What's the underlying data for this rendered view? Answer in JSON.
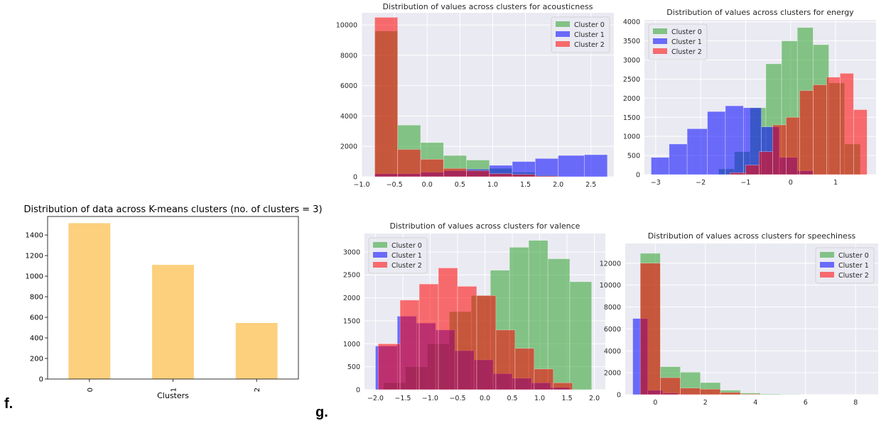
{
  "panel_labels": {
    "f": "f.",
    "g": "g."
  },
  "chart_data": [
    {
      "id": "kmeans",
      "type": "bar",
      "title": "Distribution of data across K-means clusters (no. of clusters = 3)",
      "xlabel": "Clusters",
      "ylabel": "",
      "categories": [
        "0",
        "1",
        "2"
      ],
      "values": [
        1515,
        1110,
        545
      ],
      "color": "#fdd07e",
      "ylim": [
        0,
        1580
      ],
      "yticks": [
        0,
        200,
        400,
        600,
        800,
        1000,
        1200,
        1400
      ],
      "ytick_labels": [
        "0",
        "200",
        "400",
        "600",
        "800",
        "1000",
        "1200",
        "1400"
      ],
      "grid": false
    },
    {
      "id": "acousticness",
      "type": "bar",
      "title": "Distribution of values across clusters for acousticness",
      "xlabel": "",
      "ylabel": "",
      "xlim": [
        -1.0,
        2.85
      ],
      "ylim": [
        0,
        10800
      ],
      "xticks": [
        -1.0,
        -0.5,
        0.0,
        0.5,
        1.0,
        1.5,
        2.0,
        2.5
      ],
      "xtick_labels": [
        "−1.0",
        "−0.5",
        "0.0",
        "0.5",
        "1.0",
        "1.5",
        "2.0",
        "2.5"
      ],
      "yticks": [
        0,
        2000,
        4000,
        6000,
        8000,
        10000
      ],
      "ytick_labels": [
        "0",
        "2000",
        "4000",
        "6000",
        "8000",
        "10000"
      ],
      "grid": true,
      "legend_position": "top-right",
      "series": [
        {
          "name": "Cluster 0",
          "color": "#2ca02c",
          "bins": [
            [
              -0.8,
              -0.45,
              9600
            ],
            [
              -0.45,
              -0.1,
              3400
            ],
            [
              -0.1,
              0.25,
              2250
            ],
            [
              0.25,
              0.6,
              1400
            ],
            [
              0.6,
              0.95,
              1100
            ],
            [
              0.95,
              1.3,
              550
            ],
            [
              1.3,
              1.65,
              300
            ],
            [
              1.65,
              2.0,
              100
            ]
          ]
        },
        {
          "name": "Cluster 1",
          "color": "#0000ff",
          "bins": [
            [
              -0.8,
              -0.45,
              200
            ],
            [
              -0.45,
              -0.1,
              200
            ],
            [
              -0.1,
              0.25,
              300
            ],
            [
              0.25,
              0.6,
              400
            ],
            [
              0.6,
              0.95,
              500
            ],
            [
              0.95,
              1.3,
              750
            ],
            [
              1.3,
              1.65,
              1000
            ],
            [
              1.65,
              2.0,
              1200
            ],
            [
              2.0,
              2.4,
              1400
            ],
            [
              2.4,
              2.75,
              1450
            ]
          ]
        },
        {
          "name": "Cluster 2",
          "color": "#ff0000",
          "bins": [
            [
              -0.8,
              -0.45,
              10500
            ],
            [
              -0.45,
              -0.1,
              1800
            ],
            [
              -0.1,
              0.25,
              1150
            ],
            [
              0.25,
              0.6,
              550
            ],
            [
              0.6,
              0.95,
              400
            ],
            [
              0.95,
              1.3,
              200
            ],
            [
              1.3,
              1.65,
              150
            ],
            [
              1.65,
              2.0,
              50
            ]
          ]
        }
      ]
    },
    {
      "id": "energy",
      "type": "bar",
      "title": "Distribution of values across clusters for energy",
      "xlabel": "",
      "ylabel": "",
      "xlim": [
        -3.25,
        1.9
      ],
      "ylim": [
        0,
        4050
      ],
      "xticks": [
        -3,
        -2,
        -1,
        0,
        1
      ],
      "xtick_labels": [
        "−3",
        "−2",
        "−1",
        "0",
        "1"
      ],
      "yticks": [
        0,
        500,
        1000,
        1500,
        2000,
        2500,
        3000,
        3500,
        4000
      ],
      "ytick_labels": [
        "0",
        "500",
        "1000",
        "1500",
        "2000",
        "2500",
        "3000",
        "3500",
        "4000"
      ],
      "grid": true,
      "legend_position": "top-left",
      "series": [
        {
          "name": "Cluster 0",
          "color": "#2ca02c",
          "bins": [
            [
              -1.6,
              -1.25,
              150
            ],
            [
              -1.25,
              -0.9,
              600
            ],
            [
              -0.9,
              -0.55,
              1750
            ],
            [
              -0.55,
              -0.2,
              2900
            ],
            [
              -0.2,
              0.15,
              3500
            ],
            [
              0.15,
              0.5,
              3850
            ],
            [
              0.5,
              0.85,
              3400
            ],
            [
              0.85,
              1.2,
              2400
            ],
            [
              1.2,
              1.55,
              800
            ]
          ]
        },
        {
          "name": "Cluster 1",
          "color": "#0000ff",
          "bins": [
            [
              -3.1,
              -2.7,
              450
            ],
            [
              -2.7,
              -2.3,
              800
            ],
            [
              -2.3,
              -1.85,
              1200
            ],
            [
              -1.85,
              -1.45,
              1650
            ],
            [
              -1.45,
              -1.05,
              1800
            ],
            [
              -1.05,
              -0.65,
              1750
            ],
            [
              -0.65,
              -0.25,
              1250
            ],
            [
              -0.25,
              0.15,
              450
            ],
            [
              0.15,
              0.5,
              100
            ]
          ]
        },
        {
          "name": "Cluster 2",
          "color": "#ff0000",
          "bins": [
            [
              -1.35,
              -1.0,
              50
            ],
            [
              -1.0,
              -0.7,
              250
            ],
            [
              -0.7,
              -0.4,
              600
            ],
            [
              -0.4,
              -0.1,
              1300
            ],
            [
              -0.1,
              0.2,
              1500
            ],
            [
              0.2,
              0.5,
              2200
            ],
            [
              0.5,
              0.8,
              2350
            ],
            [
              0.8,
              1.1,
              2550
            ],
            [
              1.1,
              1.4,
              2650
            ],
            [
              1.4,
              1.7,
              1700
            ]
          ]
        }
      ]
    },
    {
      "id": "valence",
      "type": "bar",
      "title": "Distribution of values across clusters for valence",
      "xlabel": "",
      "ylabel": "",
      "xlim": [
        -2.2,
        2.2
      ],
      "ylim": [
        0,
        3400
      ],
      "xticks": [
        -2.0,
        -1.5,
        -1.0,
        -0.5,
        0.0,
        0.5,
        1.0,
        1.5,
        2.0
      ],
      "xtick_labels": [
        "−2.0",
        "−1.5",
        "−1.0",
        "−0.5",
        "0.0",
        "0.5",
        "1.0",
        "1.5",
        "2.0"
      ],
      "yticks": [
        0,
        500,
        1000,
        1500,
        2000,
        2500,
        3000
      ],
      "ytick_labels": [
        "0",
        "500",
        "1000",
        "1500",
        "2000",
        "2500",
        "3000"
      ],
      "grid": true,
      "legend_position": "top-left",
      "series": [
        {
          "name": "Cluster 0",
          "color": "#2ca02c",
          "bins": [
            [
              -1.85,
              -1.45,
              150
            ],
            [
              -1.45,
              -1.05,
              500
            ],
            [
              -1.05,
              -0.65,
              1000
            ],
            [
              -0.65,
              -0.25,
              1700
            ],
            [
              -0.25,
              0.1,
              2050
            ],
            [
              0.1,
              0.45,
              2600
            ],
            [
              0.45,
              0.8,
              3100
            ],
            [
              0.8,
              1.15,
              3250
            ],
            [
              1.15,
              1.55,
              2850
            ],
            [
              1.55,
              1.95,
              2350
            ]
          ]
        },
        {
          "name": "Cluster 1",
          "color": "#0000ff",
          "bins": [
            [
              -2.0,
              -1.6,
              950
            ],
            [
              -1.6,
              -1.25,
              1600
            ],
            [
              -1.25,
              -0.9,
              1450
            ],
            [
              -0.9,
              -0.55,
              1300
            ],
            [
              -0.55,
              -0.2,
              850
            ],
            [
              -0.2,
              0.15,
              650
            ],
            [
              0.15,
              0.5,
              350
            ],
            [
              0.5,
              0.85,
              250
            ],
            [
              0.85,
              1.2,
              150
            ],
            [
              1.2,
              1.55,
              50
            ]
          ]
        },
        {
          "name": "Cluster 2",
          "color": "#ff0000",
          "bins": [
            [
              -1.95,
              -1.55,
              1000
            ],
            [
              -1.55,
              -1.2,
              1950
            ],
            [
              -1.2,
              -0.85,
              2300
            ],
            [
              -0.85,
              -0.5,
              2650
            ],
            [
              -0.5,
              -0.15,
              2250
            ],
            [
              -0.15,
              0.2,
              2050
            ],
            [
              0.2,
              0.55,
              1300
            ],
            [
              0.55,
              0.9,
              900
            ],
            [
              0.9,
              1.25,
              450
            ],
            [
              1.25,
              1.6,
              150
            ]
          ]
        }
      ]
    },
    {
      "id": "speechiness",
      "type": "bar",
      "title": "Distribution of values across clusters for speechiness",
      "xlabel": "",
      "ylabel": "",
      "xlim": [
        -1.2,
        8.9
      ],
      "ylim": [
        0,
        13800
      ],
      "xticks": [
        0,
        2,
        4,
        6,
        8
      ],
      "xtick_labels": [
        "0",
        "2",
        "4",
        "6",
        "8"
      ],
      "yticks": [
        0,
        2000,
        4000,
        6000,
        8000,
        10000,
        12000
      ],
      "ytick_labels": [
        "0",
        "2000",
        "4000",
        "6000",
        "8000",
        "10000",
        "12000"
      ],
      "grid": true,
      "legend_position": "top-right",
      "series": [
        {
          "name": "Cluster 0",
          "color": "#2ca02c",
          "bins": [
            [
              -0.6,
              0.2,
              12900
            ],
            [
              0.2,
              1.0,
              2550
            ],
            [
              1.0,
              1.8,
              2050
            ],
            [
              1.8,
              2.6,
              1100
            ],
            [
              2.6,
              3.4,
              400
            ],
            [
              3.4,
              4.2,
              150
            ],
            [
              4.2,
              5.0,
              60
            ],
            [
              5.0,
              5.8,
              30
            ]
          ]
        },
        {
          "name": "Cluster 1",
          "color": "#0000ff",
          "bins": [
            [
              -0.9,
              -0.3,
              6950
            ],
            [
              -0.3,
              0.3,
              400
            ],
            [
              0.3,
              0.9,
              150
            ],
            [
              0.9,
              1.5,
              50
            ]
          ]
        },
        {
          "name": "Cluster 2",
          "color": "#ff0000",
          "bins": [
            [
              -0.6,
              0.2,
              12000
            ],
            [
              0.2,
              1.0,
              1550
            ],
            [
              1.0,
              1.8,
              600
            ],
            [
              1.8,
              2.6,
              500
            ],
            [
              2.6,
              3.4,
              200
            ],
            [
              3.4,
              4.2,
              50
            ]
          ]
        }
      ]
    }
  ]
}
